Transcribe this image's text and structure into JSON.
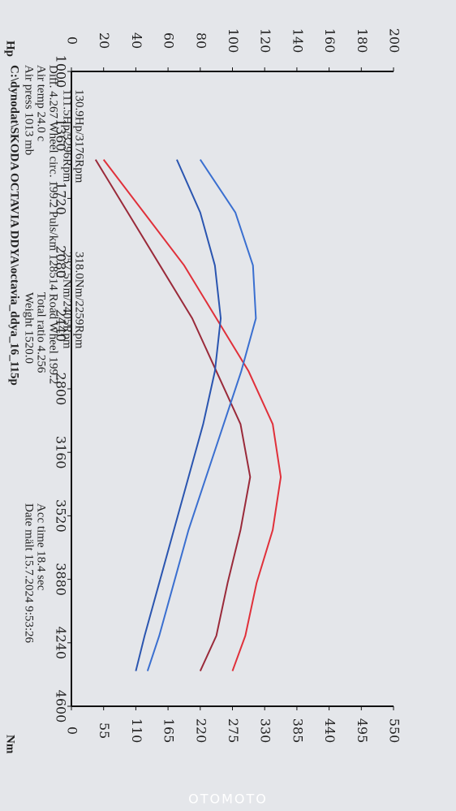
{
  "chart_data": {
    "type": "line",
    "title": "C:\\dynodat\\SKODA OCTAVIA DDYA\\octavia_ddya_16_115p",
    "annotations": [
      "Air press  1013 mb",
      "Weight  1520.0",
      "Date mält 15.7.2024 9:53:26",
      "Air temp  24.0 c",
      "Total ratio 4.256",
      "Acc time  18.4 sec",
      "Diff.  4.267  Wheel circ. 199.2  Puls/km 128514  Road Wheel 199.2"
    ],
    "ylabel": "Hp",
    "y2label": "Nm",
    "x": [
      1500,
      1800,
      2100,
      2400,
      2700,
      3000,
      3300,
      3600,
      3900,
      4200,
      4400
    ],
    "series": [
      {
        "name": "111.5Hp/3296Rpm",
        "color": "#9a2a3a",
        "values": [
          15,
          35,
          55,
          75,
          90,
          105,
          111,
          105,
          97,
          90,
          80
        ]
      },
      {
        "name": "130.9Hp/3176Rpm",
        "color": "#e0303a",
        "values": [
          20,
          45,
          70,
          90,
          110,
          125,
          130,
          125,
          115,
          108,
          100
        ]
      },
      {
        "name": "257.5Nm/2405Rpm",
        "color": "#2a55b0",
        "axis": "y2",
        "values": [
          180,
          220,
          245,
          255,
          245,
          225,
          200,
          175,
          150,
          125,
          110
        ]
      },
      {
        "name": "318.0Nm/2259Rpm",
        "color": "#3a6fd0",
        "axis": "y2",
        "values": [
          220,
          280,
          310,
          315,
          290,
          260,
          230,
          200,
          175,
          150,
          130
        ]
      }
    ],
    "xlim": [
      1000,
      4600
    ],
    "xticks": [
      1000,
      1360,
      1720,
      2080,
      2440,
      2800,
      3160,
      3520,
      3880,
      4240,
      4600
    ],
    "ylim": [
      0,
      200
    ],
    "yticks": [
      0,
      20,
      40,
      60,
      80,
      100,
      120,
      140,
      160,
      180,
      200
    ],
    "y2lim": [
      0,
      550
    ],
    "y2ticks": [
      0,
      55,
      110,
      165,
      220,
      275,
      330,
      385,
      440,
      495,
      550
    ],
    "watermark": "OTOMOTO"
  }
}
